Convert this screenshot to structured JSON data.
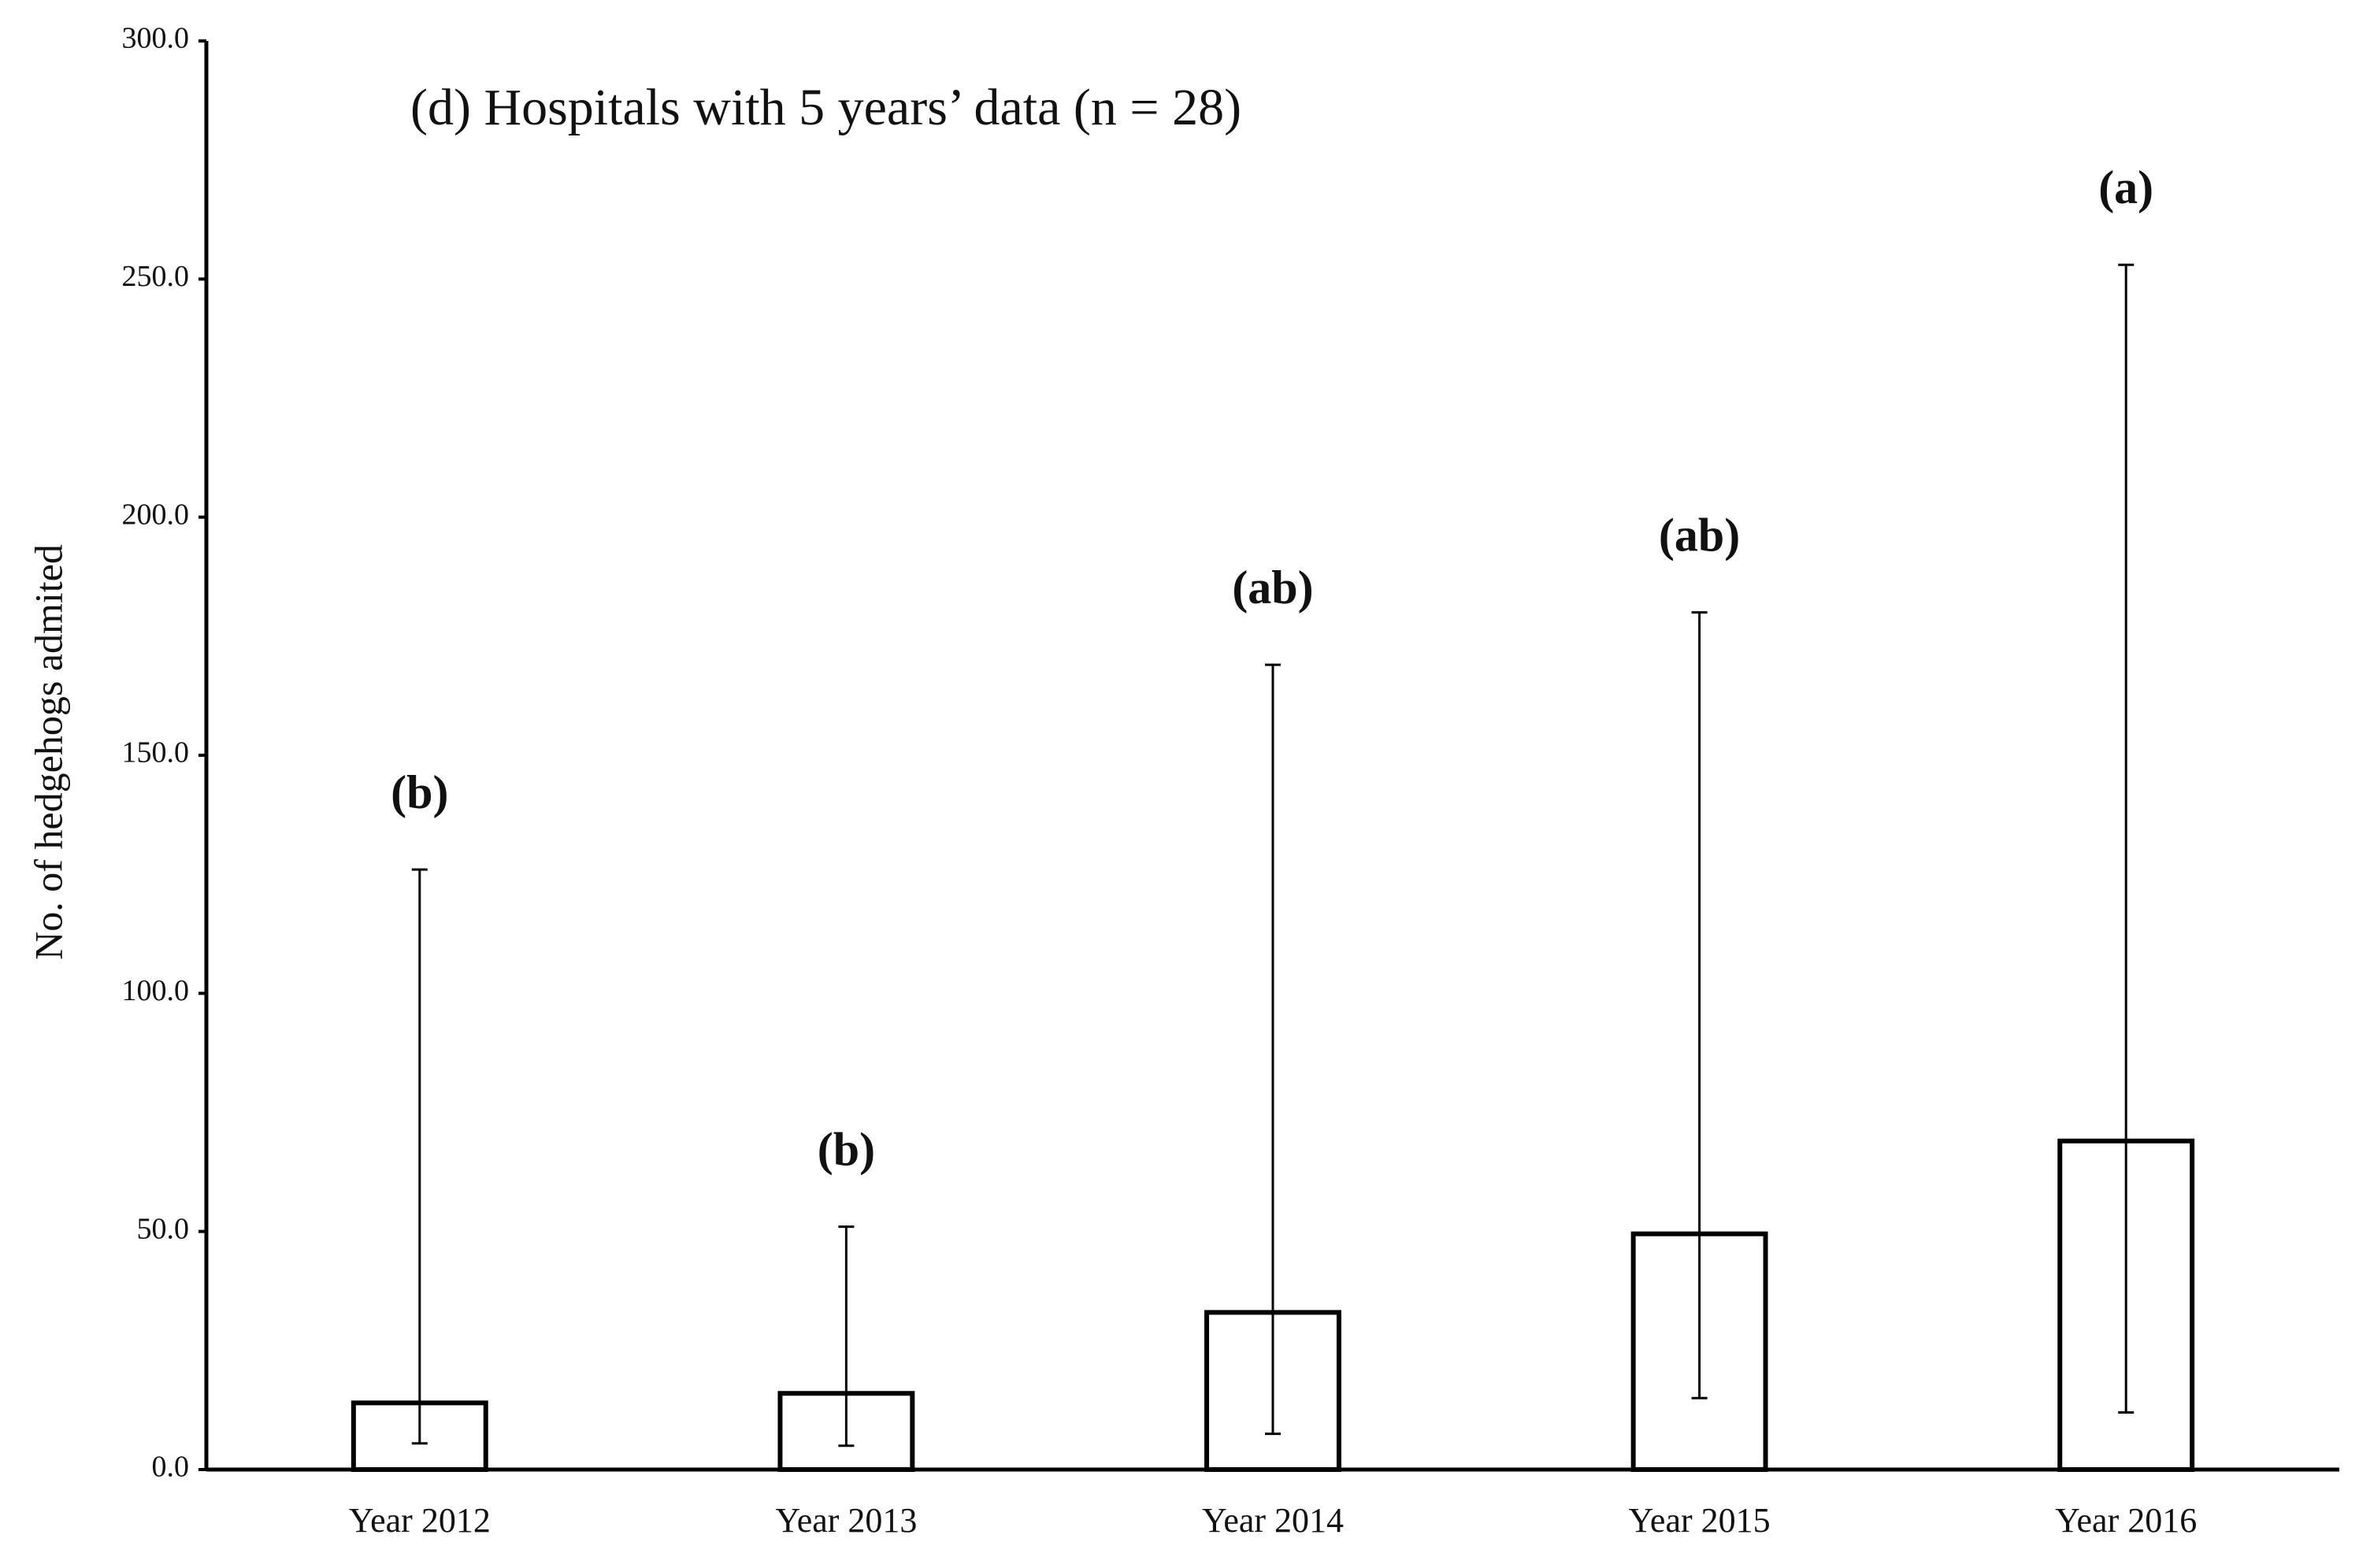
{
  "chart_data": {
    "type": "bar",
    "title": "(d) Hospitals with 5 years’ data (n = 28)",
    "y_label": "No. of hedgehogs admited",
    "categories": [
      "Year 2012",
      "Year 2013",
      "Year 2014",
      "Year 2015",
      "Year 2016"
    ],
    "values": [
      14,
      16,
      33,
      49.5,
      69
    ],
    "lower": [
      5.5,
      5,
      7.5,
      15,
      12
    ],
    "upper": [
      126,
      51,
      169,
      180,
      253
    ],
    "annotations": [
      "(b)",
      "(b)",
      "(ab)",
      "(ab)",
      "(a)"
    ],
    "color": "#ffffff",
    "edge_color": "#000000",
    "ylim": [
      0,
      300
    ],
    "yticks": [
      {
        "value": 0,
        "label": "0.0"
      },
      {
        "value": 50,
        "label": "50.0"
      },
      {
        "value": 100,
        "label": "100.0"
      },
      {
        "value": 150,
        "label": "150.0"
      },
      {
        "value": 200,
        "label": "200.0"
      },
      {
        "value": 250,
        "label": "250.0"
      },
      {
        "value": 300,
        "label": "300.0"
      }
    ],
    "grid": false
  }
}
